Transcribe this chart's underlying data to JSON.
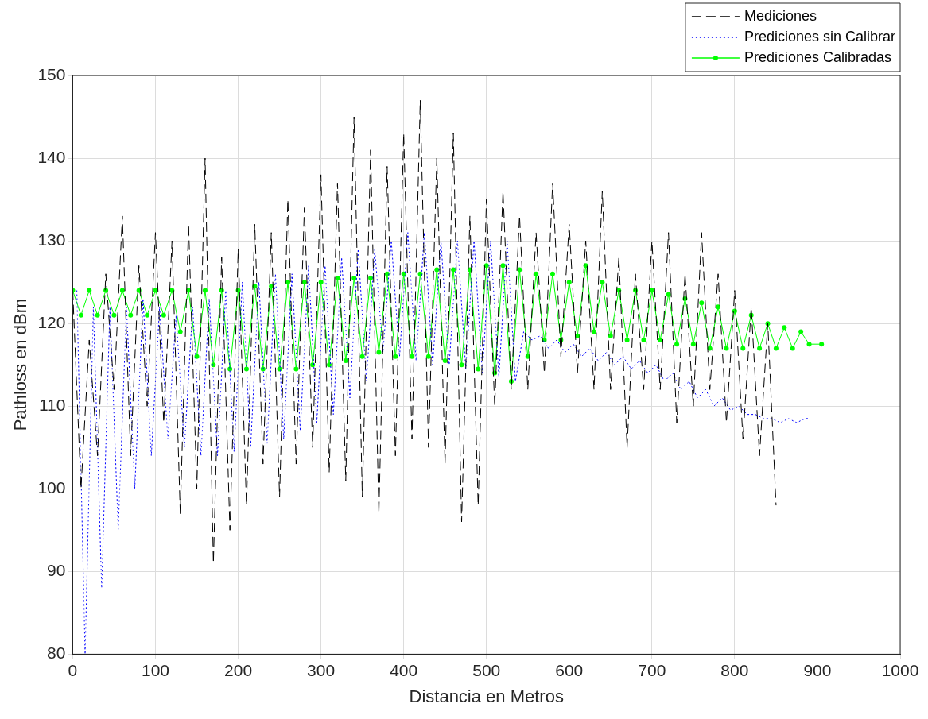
{
  "chart_data": {
    "type": "line",
    "xlabel": "Distancia en Metros",
    "ylabel": "Pathloss en dBm",
    "xlim": [
      0,
      1000
    ],
    "xticks": [
      0,
      100,
      200,
      300,
      400,
      500,
      600,
      700,
      800,
      900,
      1000
    ],
    "ylim": [
      80,
      150
    ],
    "yticks": [
      80,
      90,
      100,
      110,
      120,
      130,
      140,
      150
    ],
    "grid": true,
    "legend": "top right",
    "series": [
      {
        "name": "Mediciones",
        "color": "#000000",
        "line_style": "dashed",
        "marker": "none",
        "x": [
          0,
          10,
          20,
          30,
          40,
          50,
          60,
          70,
          80,
          90,
          100,
          110,
          120,
          130,
          140,
          150,
          160,
          170,
          180,
          190,
          200,
          210,
          220,
          230,
          240,
          250,
          260,
          270,
          280,
          290,
          300,
          310,
          320,
          330,
          340,
          350,
          360,
          370,
          380,
          390,
          400,
          410,
          420,
          430,
          440,
          450,
          460,
          470,
          480,
          490,
          500,
          510,
          520,
          530,
          540,
          550,
          560,
          570,
          580,
          590,
          600,
          610,
          620,
          630,
          640,
          650,
          660,
          670,
          680,
          690,
          700,
          710,
          720,
          730,
          740,
          750,
          760,
          770,
          780,
          790,
          800,
          810,
          820,
          830,
          840,
          850
        ],
        "values": [
          124,
          100,
          118,
          104,
          126,
          112,
          133,
          104,
          127,
          110,
          131,
          108,
          130,
          97,
          132,
          100,
          140,
          91,
          128,
          95,
          129,
          98,
          132,
          103,
          131,
          99,
          135,
          103,
          134,
          105,
          138,
          102,
          137,
          101,
          145,
          99,
          141,
          97,
          139,
          104,
          143,
          106,
          147,
          105,
          140,
          103,
          143,
          96,
          133,
          98,
          135,
          110,
          136,
          112,
          133,
          112,
          131,
          114,
          137,
          116,
          132,
          114,
          130,
          112,
          136,
          112,
          128,
          105,
          126,
          112,
          130,
          112,
          131,
          108,
          126,
          110,
          131,
          112,
          126,
          108,
          124,
          106,
          122,
          104,
          120,
          98
        ]
      },
      {
        "name": "Prediciones sin Calibrar",
        "color": "#0000ff",
        "line_style": "dotted",
        "marker": "none",
        "x": [
          5,
          15,
          25,
          35,
          45,
          55,
          65,
          75,
          85,
          95,
          105,
          115,
          125,
          135,
          145,
          155,
          165,
          175,
          185,
          195,
          205,
          215,
          225,
          235,
          245,
          255,
          265,
          275,
          285,
          295,
          305,
          315,
          325,
          335,
          345,
          355,
          365,
          375,
          385,
          395,
          405,
          415,
          425,
          435,
          445,
          455,
          465,
          475,
          485,
          495,
          505,
          515,
          525,
          535,
          545,
          555,
          565,
          575,
          585,
          595,
          605,
          615,
          625,
          635,
          645,
          655,
          665,
          675,
          685,
          695,
          705,
          715,
          725,
          735,
          745,
          755,
          765,
          775,
          785,
          795,
          805,
          815,
          825,
          835,
          845,
          855,
          865,
          875,
          885,
          890
        ],
        "values": [
          124,
          80,
          122,
          88,
          122,
          95,
          122,
          100,
          123,
          104,
          122,
          106,
          121,
          105,
          122,
          104,
          123,
          104,
          124,
          104.5,
          125,
          105,
          125,
          105.5,
          126,
          106,
          126,
          107,
          127,
          108,
          127,
          109,
          128,
          111,
          129,
          113,
          129,
          116.5,
          130,
          116,
          131,
          115.5,
          131,
          115,
          130,
          115,
          130,
          114.5,
          130,
          114,
          130,
          113.5,
          130,
          113,
          119,
          118,
          118.5,
          117,
          118,
          116.5,
          117.5,
          116,
          117,
          115.5,
          116.5,
          115,
          116,
          114.5,
          115.5,
          114,
          115,
          113,
          114,
          112,
          113,
          111,
          112,
          110,
          111,
          109.5,
          110,
          109,
          109,
          108.5,
          108.5,
          108,
          108.5,
          108,
          108.5,
          108.5
        ]
      },
      {
        "name": "Prediciones Calibradas",
        "color": "#00ff00",
        "line_style": "solid",
        "marker": "circle",
        "x": [
          0,
          10,
          20,
          30,
          40,
          50,
          60,
          70,
          80,
          90,
          100,
          110,
          120,
          130,
          140,
          150,
          160,
          170,
          180,
          190,
          200,
          210,
          220,
          230,
          240,
          250,
          260,
          270,
          280,
          290,
          300,
          310,
          320,
          330,
          340,
          350,
          360,
          370,
          380,
          390,
          400,
          410,
          420,
          430,
          440,
          450,
          460,
          470,
          480,
          490,
          500,
          510,
          520,
          530,
          540,
          550,
          560,
          570,
          580,
          590,
          600,
          610,
          620,
          630,
          640,
          650,
          660,
          670,
          680,
          690,
          700,
          710,
          720,
          730,
          740,
          750,
          760,
          770,
          780,
          790,
          800,
          810,
          820,
          830,
          840,
          850,
          860,
          870,
          880,
          890,
          905
        ],
        "values": [
          124,
          121,
          124,
          121,
          124,
          121,
          124,
          121,
          124,
          121,
          124,
          121,
          124,
          119,
          124,
          116,
          124,
          115,
          124,
          114.5,
          124,
          114.5,
          124.5,
          114.5,
          124.5,
          114.5,
          125,
          114.5,
          125,
          115,
          125,
          115,
          125.5,
          115.5,
          125.5,
          116,
          125.5,
          116.5,
          126,
          116,
          126,
          116,
          126,
          116,
          126.5,
          115.5,
          126.5,
          115,
          126.5,
          114.5,
          127,
          114,
          127,
          113,
          126.5,
          116,
          126,
          118,
          126,
          118,
          125,
          118.5,
          127,
          119,
          125,
          118.5,
          124,
          118,
          124,
          118,
          124,
          118,
          123.5,
          117.5,
          123,
          117.5,
          122.5,
          117,
          122,
          117,
          121.5,
          117,
          121,
          117,
          120,
          117,
          119.5,
          117,
          119,
          117.5,
          117.5
        ]
      }
    ]
  }
}
